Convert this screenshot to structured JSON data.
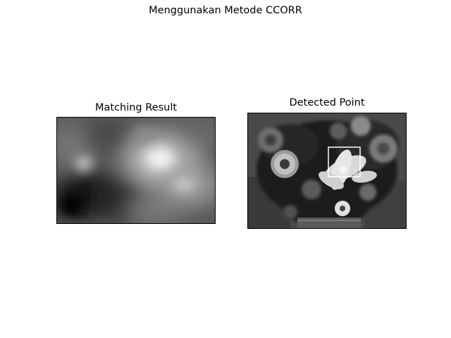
{
  "figure": {
    "suptitle": "Menggunakan Metode CCORR"
  },
  "panels": [
    {
      "title": "Matching Result"
    },
    {
      "title": "Detected Point"
    }
  ],
  "colors": {
    "background": "#ffffff",
    "axes_frame": "#000000",
    "detection_box": "#ffffff"
  }
}
